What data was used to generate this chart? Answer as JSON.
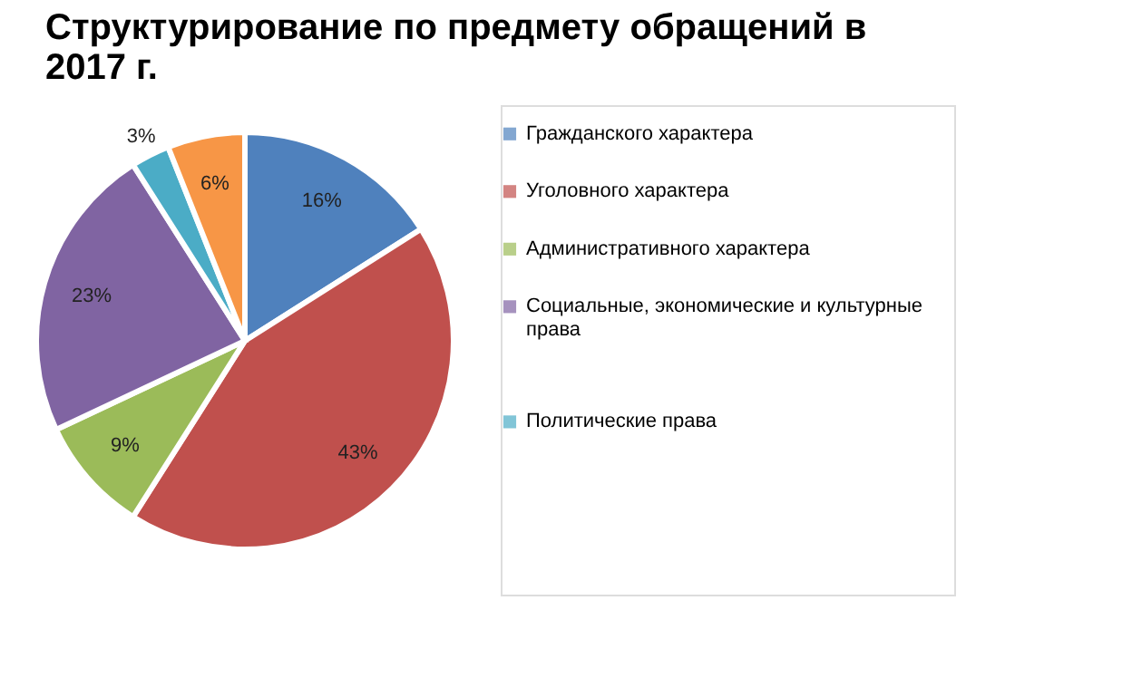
{
  "chart_data": {
    "type": "pie",
    "title": "Структурирование по предмету обращений в 2017 г.",
    "categories": [
      "Гражданского характера",
      "Уголовного характера",
      "Административного характера",
      "Социальные, экономические и культурные права",
      "Политические права",
      null
    ],
    "values": [
      16,
      43,
      9,
      23,
      3,
      6
    ],
    "value_labels": [
      "16%",
      "43%",
      "9%",
      "23%",
      "3%",
      "6%"
    ],
    "colors": [
      "#4f81bd",
      "#c0504d",
      "#9bbb59",
      "#8064a2",
      "#4bacc6",
      "#f79646"
    ],
    "legend": "right"
  }
}
